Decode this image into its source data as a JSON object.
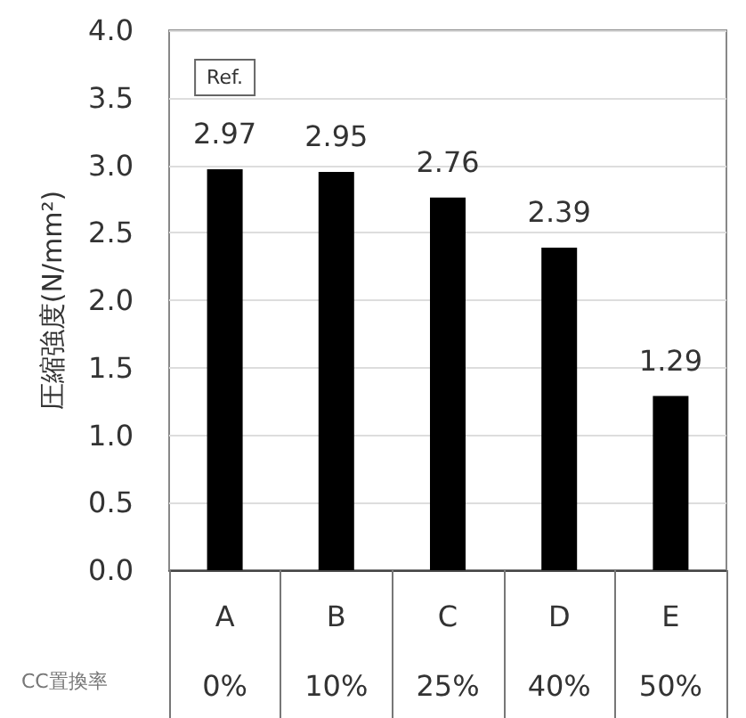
{
  "chart_data": {
    "type": "bar",
    "ylabel": "圧縮強度(N/mm²)",
    "categories": [
      "A",
      "B",
      "C",
      "D",
      "E"
    ],
    "values": [
      2.97,
      2.95,
      2.76,
      2.39,
      1.29
    ],
    "color": "#000000",
    "ylim": [
      0,
      4
    ],
    "yticks": [
      {
        "value": 0,
        "label": "0.0"
      },
      {
        "value": 0.5,
        "label": "0.5"
      },
      {
        "value": 1,
        "label": "1.0"
      },
      {
        "value": 1.5,
        "label": "1.5"
      },
      {
        "value": 2,
        "label": "2.0"
      },
      {
        "value": 2.5,
        "label": "2.5"
      },
      {
        "value": 3,
        "label": "3.0"
      },
      {
        "value": 3.5,
        "label": "3.5"
      },
      {
        "value": 4,
        "label": "4.0"
      }
    ],
    "grid": "y",
    "data_labels": true,
    "annotations": [
      {
        "text": "Ref.",
        "x": "A",
        "y": 3.65
      },
      "CC置換率",
      "0%",
      "10%",
      "25%",
      "40%",
      "50%"
    ]
  }
}
